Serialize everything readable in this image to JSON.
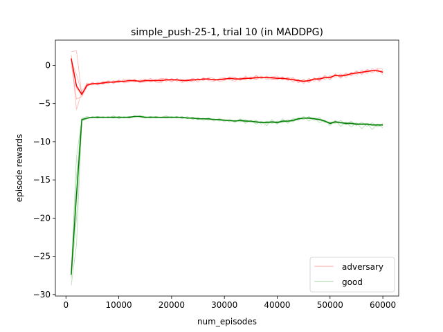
{
  "chart_data": {
    "type": "line",
    "title": "simple_push-25-1, trial 10 (in MADDPG)",
    "xlabel": "num_episodes",
    "ylabel": "episode rewards",
    "xlim": [
      -2000,
      63000
    ],
    "ylim": [
      -30.2,
      3.3
    ],
    "xticks": [
      0,
      10000,
      20000,
      30000,
      40000,
      50000,
      60000
    ],
    "xtick_labels": [
      "0",
      "10000",
      "20000",
      "30000",
      "40000",
      "50000",
      "60000"
    ],
    "yticks": [
      0,
      -5,
      -10,
      -15,
      -20,
      -25,
      -30
    ],
    "ytick_labels": [
      "0",
      "−5",
      "−10",
      "−15",
      "−20",
      "−25",
      "−30"
    ],
    "grid": false,
    "legend_position": "lower-right",
    "x": [
      1000,
      2000,
      3000,
      4000,
      5000,
      6000,
      7000,
      8000,
      9000,
      10000,
      11000,
      12000,
      13000,
      14000,
      15000,
      16000,
      17000,
      18000,
      19000,
      20000,
      21000,
      22000,
      23000,
      24000,
      25000,
      26000,
      27000,
      28000,
      29000,
      30000,
      31000,
      32000,
      33000,
      34000,
      35000,
      36000,
      37000,
      38000,
      39000,
      40000,
      41000,
      42000,
      43000,
      44000,
      45000,
      46000,
      47000,
      48000,
      49000,
      50000,
      51000,
      52000,
      53000,
      54000,
      55000,
      56000,
      57000,
      58000,
      59000,
      60000
    ],
    "series": [
      {
        "name": "adversary",
        "color": "#ff0000",
        "mean": [
          0.9,
          -2.7,
          -3.8,
          -2.6,
          -2.4,
          -2.4,
          -2.3,
          -2.2,
          -2.2,
          -2.1,
          -2.1,
          -2.0,
          -2.0,
          -2.1,
          -2.0,
          -2.0,
          -2.0,
          -2.0,
          -1.9,
          -1.9,
          -1.9,
          -2.0,
          -2.0,
          -1.9,
          -1.9,
          -1.8,
          -1.8,
          -1.9,
          -1.9,
          -1.8,
          -1.7,
          -1.8,
          -1.8,
          -1.7,
          -1.7,
          -1.6,
          -1.6,
          -1.6,
          -1.6,
          -1.7,
          -1.7,
          -1.8,
          -1.9,
          -2.0,
          -2.1,
          -2.0,
          -1.8,
          -1.8,
          -1.6,
          -1.6,
          -1.3,
          -1.4,
          -1.3,
          -1.1,
          -1.0,
          -0.9,
          -0.8,
          -0.7,
          -0.7,
          -0.9
        ],
        "runs": [
          [
            1.4,
            -5.8,
            -3.4,
            -2.4,
            -2.6,
            -2.2,
            -2.5,
            -2.0,
            -2.4,
            -1.9,
            -2.3,
            -2.2,
            -1.8,
            -2.3,
            -2.1,
            -1.7,
            -2.2,
            -2.3,
            -1.7,
            -2.1,
            -1.8,
            -2.3,
            -1.9,
            -1.8,
            -2.2,
            -1.6,
            -2.0,
            -2.1,
            -1.7,
            -1.6,
            -1.9,
            -2.1,
            -1.6,
            -1.9,
            -1.5,
            -1.8,
            -1.4,
            -1.9,
            -1.5,
            -1.4,
            -1.9,
            -1.6,
            -2.2,
            -1.8,
            -2.4,
            -1.7,
            -2.1,
            -1.5,
            -1.9,
            -1.3,
            -1.6,
            -1.1,
            -1.6,
            -0.9,
            -1.3,
            -0.6,
            -1.1,
            -0.4,
            -0.9,
            -0.6
          ],
          [
            0.3,
            -4.4,
            -4.1,
            -2.8,
            -2.2,
            -2.6,
            -2.1,
            -2.4,
            -2.0,
            -2.3,
            -1.8,
            -2.0,
            -2.2,
            -1.9,
            -1.8,
            -2.2,
            -1.8,
            -1.8,
            -2.1,
            -1.7,
            -2.1,
            -1.8,
            -2.2,
            -2.0,
            -1.7,
            -2.0,
            -1.6,
            -1.7,
            -2.1,
            -2.0,
            -1.5,
            -1.6,
            -2.0,
            -1.4,
            -1.9,
            -1.3,
            -1.8,
            -1.4,
            -1.8,
            -1.9,
            -1.5,
            -2.0,
            -1.6,
            -2.2,
            -1.8,
            -2.3,
            -1.6,
            -2.1,
            -1.4,
            -1.9,
            -1.1,
            -1.7,
            -1.1,
            -1.4,
            -0.8,
            -1.2,
            -0.6,
            -1.0,
            -0.5,
            -1.2
          ],
          [
            1.8,
            1.9,
            -3.9,
            -2.3,
            -2.5,
            -2.3,
            -2.4,
            -2.3,
            -2.1,
            -2.0,
            -2.2,
            -1.8,
            -2.1,
            -2.1,
            -2.2,
            -1.9,
            -2.1,
            -1.7,
            -1.8,
            -2.2,
            -1.7,
            -2.1,
            -1.8,
            -2.2,
            -1.8,
            -1.9,
            -1.7,
            -2.0,
            -1.8,
            -1.7,
            -1.8,
            -1.6,
            -1.9,
            -1.8,
            -1.6,
            -1.9,
            -1.5,
            -1.7,
            -1.9,
            -1.6,
            -1.8,
            -1.6,
            -1.7,
            -2.3,
            -1.9,
            -2.2,
            -1.7,
            -2.0,
            -1.3,
            -1.8,
            -1.2,
            -1.6,
            -1.0,
            -1.3,
            -0.7,
            -1.1,
            -0.5,
            -0.8,
            -0.4,
            -0.5
          ],
          [
            0.6,
            -1.2,
            -3.6,
            -2.7,
            -2.4,
            -2.5,
            -2.2,
            -2.1,
            -2.3,
            -2.2,
            -2.0,
            -2.1,
            -1.9,
            -2.2,
            -1.9,
            -2.0,
            -1.9,
            -2.1,
            -1.9,
            -1.8,
            -1.9,
            -2.0,
            -2.0,
            -1.7,
            -1.9,
            -1.7,
            -1.9,
            -1.8,
            -1.9,
            -1.9,
            -1.6,
            -1.8,
            -1.7,
            -1.6,
            -1.8,
            -1.4,
            -1.7,
            -1.5,
            -1.7,
            -1.8,
            -1.6,
            -1.9,
            -1.8,
            -1.9,
            -2.2,
            -1.9,
            -1.8,
            -1.7,
            -1.7,
            -1.5,
            -1.4,
            -1.3,
            -1.4,
            -1.0,
            -1.1,
            -0.9,
            -0.9,
            -0.6,
            -0.8,
            -0.9
          ],
          [
            0.8,
            -3.0,
            -3.9,
            -2.5,
            -2.3,
            -2.4,
            -2.4,
            -2.2,
            -2.2,
            -2.1,
            -2.1,
            -2.0,
            -2.1,
            -2.0,
            -2.0,
            -2.1,
            -2.0,
            -1.9,
            -2.0,
            -1.9,
            -2.0,
            -1.9,
            -1.9,
            -2.0,
            -1.8,
            -1.9,
            -1.8,
            -1.9,
            -1.8,
            -1.8,
            -1.8,
            -1.7,
            -1.8,
            -1.7,
            -1.7,
            -1.7,
            -1.6,
            -1.6,
            -1.7,
            -1.7,
            -1.8,
            -1.7,
            -1.9,
            -2.0,
            -2.0,
            -2.1,
            -1.9,
            -1.7,
            -1.6,
            -1.5,
            -1.4,
            -1.3,
            -1.2,
            -1.1,
            -1.0,
            -0.9,
            -0.8,
            -0.7,
            -0.7,
            -0.8
          ]
        ]
      },
      {
        "name": "good",
        "color": "#008000",
        "mean": [
          -27.4,
          -17.0,
          -7.1,
          -6.9,
          -6.8,
          -6.8,
          -6.8,
          -6.8,
          -6.8,
          -6.8,
          -6.8,
          -6.8,
          -6.7,
          -6.7,
          -6.8,
          -6.8,
          -6.8,
          -6.8,
          -6.8,
          -6.8,
          -6.8,
          -6.8,
          -6.9,
          -6.9,
          -7.0,
          -7.0,
          -7.0,
          -7.1,
          -7.1,
          -7.2,
          -7.2,
          -7.3,
          -7.2,
          -7.3,
          -7.3,
          -7.4,
          -7.5,
          -7.5,
          -7.4,
          -7.5,
          -7.3,
          -7.3,
          -7.2,
          -7.0,
          -6.9,
          -6.9,
          -7.0,
          -7.1,
          -7.3,
          -7.6,
          -7.4,
          -7.5,
          -7.6,
          -7.6,
          -7.7,
          -7.7,
          -7.7,
          -7.8,
          -7.8,
          -7.8
        ],
        "runs": [
          [
            -28.8,
            -23.5,
            -7.3,
            -7.0,
            -6.7,
            -6.9,
            -6.7,
            -6.9,
            -6.6,
            -7.0,
            -6.7,
            -6.9,
            -6.6,
            -6.8,
            -6.9,
            -6.7,
            -6.9,
            -6.8,
            -6.6,
            -6.9,
            -6.7,
            -7.0,
            -6.7,
            -7.1,
            -6.8,
            -7.2,
            -6.9,
            -7.3,
            -7.0,
            -7.4,
            -7.1,
            -7.5,
            -7.0,
            -7.6,
            -7.2,
            -7.7,
            -7.3,
            -7.9,
            -7.1,
            -7.7,
            -7.0,
            -7.6,
            -6.9,
            -7.2,
            -6.7,
            -7.3,
            -6.9,
            -7.5,
            -7.2,
            -7.9,
            -7.2,
            -8.0,
            -7.4,
            -8.1,
            -7.5,
            -8.3,
            -7.6,
            -8.4,
            -7.7,
            -8.2
          ],
          [
            -26.9,
            -12.0,
            -6.9,
            -6.7,
            -6.9,
            -6.7,
            -6.9,
            -6.7,
            -6.9,
            -6.7,
            -6.9,
            -6.7,
            -6.8,
            -6.6,
            -6.7,
            -6.9,
            -6.7,
            -6.9,
            -6.8,
            -6.7,
            -6.9,
            -6.7,
            -7.0,
            -6.8,
            -7.1,
            -6.9,
            -7.2,
            -7.0,
            -7.3,
            -7.1,
            -7.4,
            -7.2,
            -7.4,
            -7.1,
            -7.5,
            -7.2,
            -7.7,
            -7.3,
            -7.6,
            -7.3,
            -7.5,
            -7.1,
            -7.4,
            -6.9,
            -7.1,
            -6.7,
            -7.2,
            -6.8,
            -7.5,
            -7.4,
            -7.6,
            -7.2,
            -7.8,
            -7.3,
            -7.9,
            -7.4,
            -8.0,
            -7.5,
            -8.1,
            -7.6
          ],
          [
            -27.9,
            -20.0,
            -7.2,
            -7.0,
            -6.8,
            -6.7,
            -6.8,
            -6.8,
            -6.7,
            -6.8,
            -6.8,
            -6.7,
            -6.7,
            -6.7,
            -6.8,
            -6.7,
            -6.8,
            -6.8,
            -6.7,
            -6.8,
            -6.8,
            -6.8,
            -6.8,
            -7.0,
            -6.9,
            -7.0,
            -7.1,
            -7.0,
            -7.2,
            -7.2,
            -7.3,
            -7.2,
            -7.3,
            -7.4,
            -7.3,
            -7.5,
            -7.5,
            -7.6,
            -7.5,
            -7.6,
            -7.4,
            -7.4,
            -7.3,
            -7.1,
            -6.9,
            -7.0,
            -7.0,
            -7.2,
            -7.3,
            -7.7,
            -7.5,
            -7.6,
            -7.7,
            -7.7,
            -7.8,
            -7.8,
            -7.8,
            -7.9,
            -7.9,
            -7.9
          ],
          [
            -27.0,
            -14.5,
            -7.0,
            -6.9,
            -6.8,
            -6.9,
            -6.8,
            -6.8,
            -6.9,
            -6.7,
            -6.8,
            -6.9,
            -6.7,
            -6.7,
            -6.8,
            -6.8,
            -6.7,
            -6.8,
            -6.9,
            -6.8,
            -6.7,
            -6.9,
            -6.9,
            -6.8,
            -7.0,
            -7.0,
            -6.9,
            -7.1,
            -7.0,
            -7.1,
            -7.2,
            -7.3,
            -7.1,
            -7.2,
            -7.3,
            -7.3,
            -7.4,
            -7.4,
            -7.3,
            -7.4,
            -7.2,
            -7.3,
            -7.1,
            -6.9,
            -6.9,
            -6.8,
            -6.9,
            -7.0,
            -7.2,
            -7.5,
            -7.3,
            -7.5,
            -7.5,
            -7.5,
            -7.6,
            -7.6,
            -7.6,
            -7.7,
            -7.7,
            -7.7
          ],
          [
            -27.3,
            -16.5,
            -7.1,
            -6.9,
            -6.8,
            -6.8,
            -6.8,
            -6.8,
            -6.8,
            -6.8,
            -6.8,
            -6.8,
            -6.7,
            -6.7,
            -6.8,
            -6.8,
            -6.8,
            -6.8,
            -6.8,
            -6.8,
            -6.8,
            -6.8,
            -6.9,
            -6.9,
            -7.0,
            -7.0,
            -7.0,
            -7.1,
            -7.1,
            -7.2,
            -7.2,
            -7.3,
            -7.2,
            -7.3,
            -7.3,
            -7.4,
            -7.5,
            -7.5,
            -7.4,
            -7.5,
            -7.3,
            -7.3,
            -7.2,
            -7.0,
            -6.9,
            -6.9,
            -7.0,
            -7.1,
            -7.3,
            -7.6,
            -7.4,
            -7.5,
            -7.6,
            -7.6,
            -7.7,
            -7.7,
            -7.7,
            -7.8,
            -7.8,
            -7.8
          ]
        ]
      }
    ]
  }
}
